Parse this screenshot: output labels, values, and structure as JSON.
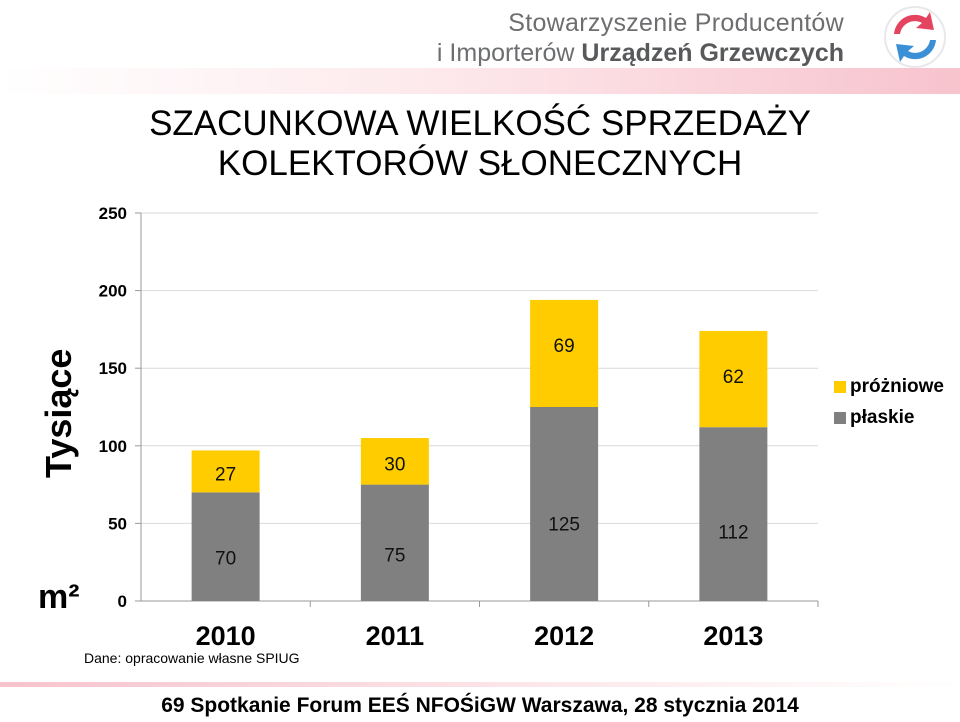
{
  "header": {
    "org_line1": "Stowarzyszenie Producentów",
    "org_line2_plain": "i Importerów ",
    "org_line2_bold": "Urządzeń Grzewczych",
    "logo_icon": "arrows-cycle-icon"
  },
  "title": {
    "line1": "SZACUNKOWA WIELKOŚĆ SPRZEDAŻY",
    "line2": "KOLEKTORÓW SŁONECZNYCH"
  },
  "units": {
    "vertical": "Tysiące",
    "bottom": "m²"
  },
  "chart_data": {
    "type": "bar",
    "stacked": true,
    "categories": [
      "2010",
      "2011",
      "2012",
      "2013"
    ],
    "series": [
      {
        "name": "płaskie",
        "color": "#808080",
        "values": [
          70,
          75,
          125,
          112
        ]
      },
      {
        "name": "próżniowe",
        "color": "#ffcc00",
        "values": [
          27,
          30,
          69,
          62
        ]
      }
    ],
    "ylim": [
      0,
      250
    ],
    "yticks": [
      "0",
      "50",
      "100",
      "150",
      "200",
      "250"
    ],
    "grid": true,
    "legend": "right"
  },
  "source": "Dane: opracowanie własne SPIUG",
  "footer": "69 Spotkanie Forum EEŚ  NFOŚiGW  Warszawa,  28 stycznia 2014"
}
